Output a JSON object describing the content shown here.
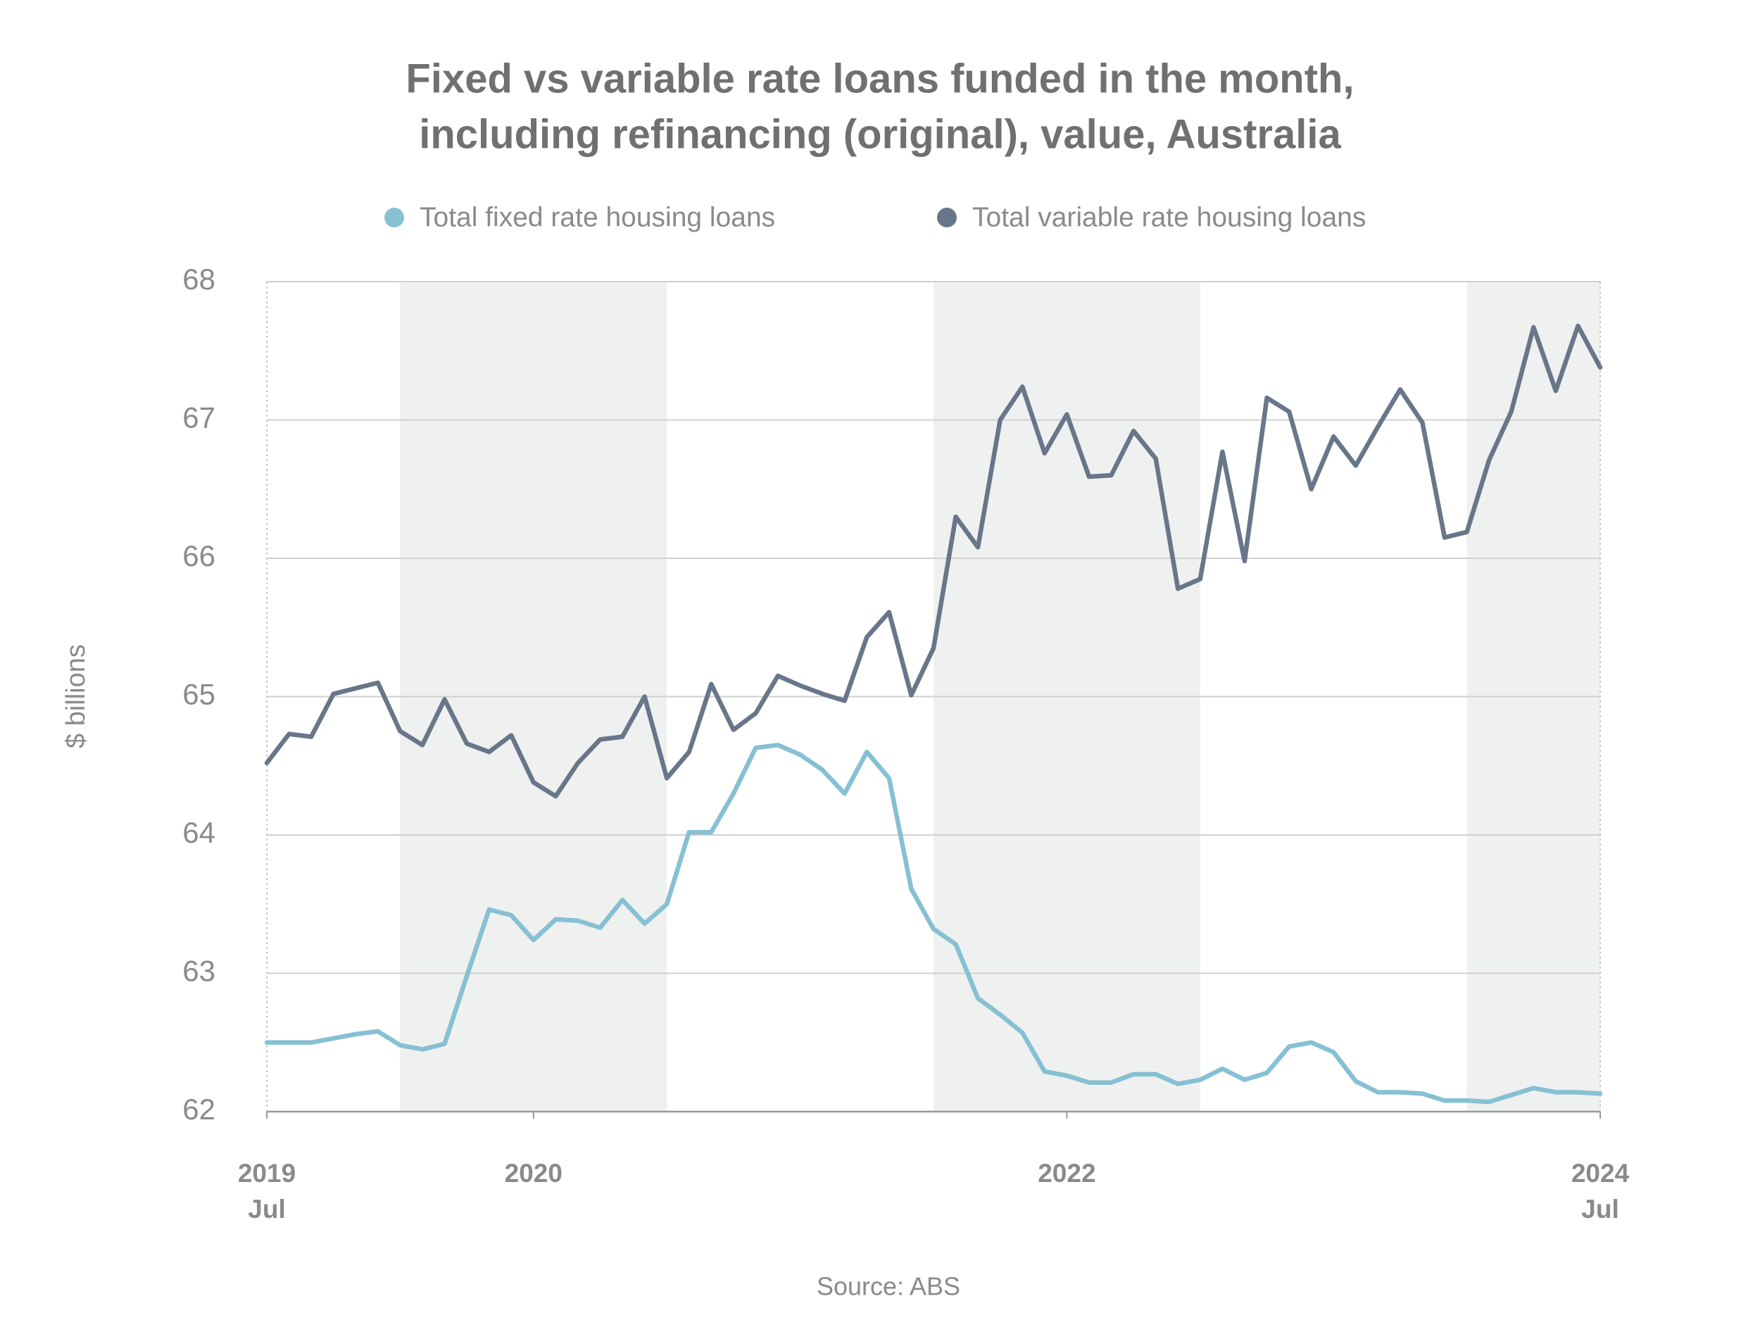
{
  "chart_data": {
    "type": "line",
    "title": [
      "Fixed vs variable rate loans funded in the month,",
      "including refinancing (original), value, Australia"
    ],
    "y_label": "$ billions",
    "source": "Source: ABS",
    "x": [
      "2019-07",
      "2019-08",
      "2019-09",
      "2019-10",
      "2019-11",
      "2019-12",
      "2020-01",
      "2020-02",
      "2020-03",
      "2020-04",
      "2020-05",
      "2020-06",
      "2020-07",
      "2020-08",
      "2020-09",
      "2020-10",
      "2020-11",
      "2020-12",
      "2021-01",
      "2021-02",
      "2021-03",
      "2021-04",
      "2021-05",
      "2021-06",
      "2021-07",
      "2021-08",
      "2021-09",
      "2021-10",
      "2021-11",
      "2021-12",
      "2022-01",
      "2022-02",
      "2022-03",
      "2022-04",
      "2022-05",
      "2022-06",
      "2022-07",
      "2022-08",
      "2022-09",
      "2022-10",
      "2022-11",
      "2022-12",
      "2023-01",
      "2023-02",
      "2023-03",
      "2023-04",
      "2023-05",
      "2023-06",
      "2023-07",
      "2023-08",
      "2023-09",
      "2023-10",
      "2023-11",
      "2023-12",
      "2024-01",
      "2024-02",
      "2024-03",
      "2024-04",
      "2024-05",
      "2024-06",
      "2024-07"
    ],
    "series": [
      {
        "name": "Total fixed rate housing loans",
        "color": "#86c0d3",
        "values": [
          62.5,
          62.5,
          62.5,
          62.53,
          62.56,
          62.58,
          62.48,
          62.45,
          62.49,
          62.98,
          63.46,
          63.42,
          63.24,
          63.39,
          63.38,
          63.33,
          63.53,
          63.36,
          63.5,
          64.02,
          64.02,
          64.3,
          64.63,
          64.65,
          64.58,
          64.47,
          64.3,
          64.6,
          64.41,
          63.61,
          63.32,
          63.21,
          62.82,
          62.7,
          62.57,
          62.29,
          62.26,
          62.21,
          62.21,
          62.27,
          62.27,
          62.2,
          62.23,
          62.31,
          62.23,
          62.28,
          62.47,
          62.5,
          62.43,
          62.22,
          62.14,
          62.14,
          62.13,
          62.08,
          62.08,
          62.07,
          62.12,
          62.17,
          62.14,
          62.14,
          62.13
        ]
      },
      {
        "name": "Total variable rate housing loans",
        "color": "#68768a",
        "values": [
          64.52,
          64.73,
          64.71,
          65.02,
          65.06,
          65.1,
          64.75,
          64.65,
          64.98,
          64.66,
          64.6,
          64.72,
          64.38,
          64.28,
          64.52,
          64.69,
          64.71,
          65.0,
          64.41,
          64.6,
          65.09,
          64.76,
          64.88,
          65.15,
          65.08,
          65.02,
          64.97,
          65.43,
          65.61,
          65.01,
          65.35,
          66.3,
          66.08,
          67.0,
          67.24,
          66.76,
          67.04,
          66.59,
          66.6,
          66.92,
          66.72,
          65.78,
          65.85,
          66.77,
          65.98,
          67.16,
          67.06,
          66.5,
          66.88,
          66.67,
          66.95,
          67.22,
          66.98,
          66.15,
          66.19,
          66.71,
          67.06,
          67.67,
          67.21,
          67.68,
          67.38
        ]
      }
    ],
    "xlim": [
      "2019-07",
      "2024-07"
    ],
    "xticks": [
      {
        "value": "2019-07",
        "label": "2019",
        "sublabel": "Jul"
      },
      {
        "value": "2020",
        "label": "2020"
      },
      {
        "value": "2022",
        "label": "2022"
      },
      {
        "value": "2024-07",
        "label": "2024",
        "sublabel": "Jul"
      }
    ],
    "shaded_years": [
      "2020",
      "2022",
      "2024"
    ],
    "shade_color": "#eff0f0",
    "ylim": [
      62,
      68
    ],
    "yticks": [
      62,
      63,
      64,
      65,
      66,
      67,
      68
    ],
    "grid": true
  }
}
